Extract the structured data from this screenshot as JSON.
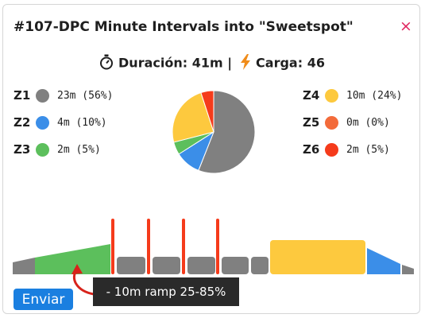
{
  "header": {
    "title": "#107-DPC Minute Intervals into \"Sweetspot\"",
    "close_label": "×"
  },
  "summary": {
    "duration_text": "Duración: 41m |",
    "load_text": "Carga: 46",
    "duration_icon": "stopwatch-icon",
    "load_icon": "lightning-bolt-icon"
  },
  "zones": [
    {
      "id": "Z1",
      "value": "23m (56%)",
      "fraction": 0.56,
      "color": "#808080"
    },
    {
      "id": "Z2",
      "value": "4m (10%)",
      "fraction": 0.1,
      "color": "#3b8ee8"
    },
    {
      "id": "Z3",
      "value": "2m (5%)",
      "fraction": 0.05,
      "color": "#5cbf5c"
    },
    {
      "id": "Z4",
      "value": "10m (24%)",
      "fraction": 0.24,
      "color": "#fdc93e"
    },
    {
      "id": "Z5",
      "value": "0m (0%)",
      "fraction": 0.0,
      "color": "#f36b3a"
    },
    {
      "id": "Z6",
      "value": "2m (5%)",
      "fraction": 0.05,
      "color": "#f53b1b"
    }
  ],
  "tooltip": {
    "text": "- 10m ramp 25-85%"
  },
  "actions": {
    "send_label": "Enviar"
  },
  "colors": {
    "accent": "#1a7fe0",
    "close": "#e0245e",
    "arrow": "#d8231b"
  }
}
